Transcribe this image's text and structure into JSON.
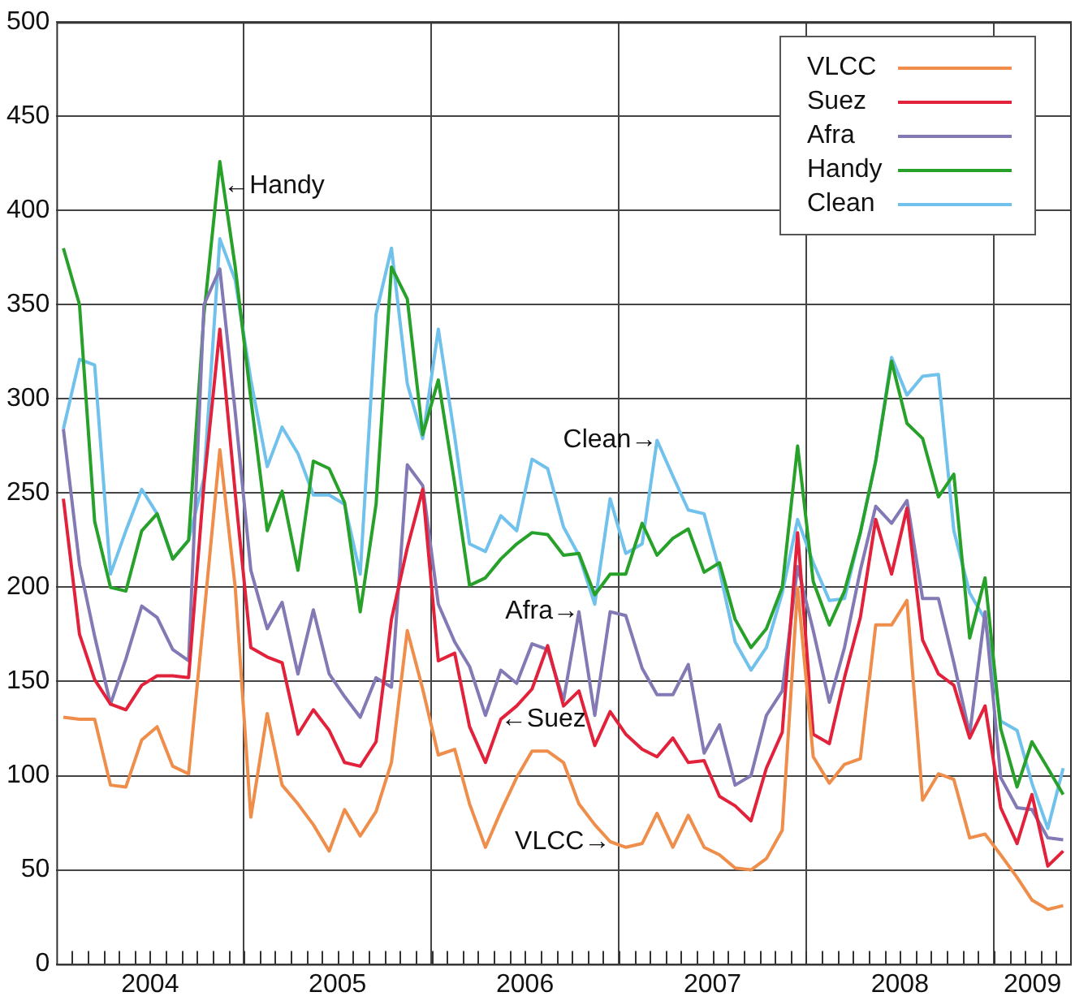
{
  "chart_data": {
    "type": "line",
    "marker": "none",
    "line_style": "solid",
    "grid": true,
    "legend": "top right",
    "x": [
      "2004-01-15",
      "2004-02-15",
      "2004-03-15",
      "2004-04-15",
      "2004-05-15",
      "2004-06-15",
      "2004-07-15",
      "2004-08-15",
      "2004-09-15",
      "2004-10-15",
      "2004-11-15",
      "2004-12-15",
      "2005-01-15",
      "2005-02-15",
      "2005-03-15",
      "2005-04-15",
      "2005-05-15",
      "2005-06-15",
      "2005-07-15",
      "2005-08-15",
      "2005-09-15",
      "2005-10-15",
      "2005-11-15",
      "2005-12-15",
      "2006-01-15",
      "2006-02-15",
      "2006-03-15",
      "2006-04-15",
      "2006-05-15",
      "2006-06-15",
      "2006-07-15",
      "2006-08-15",
      "2006-09-15",
      "2006-10-15",
      "2006-11-15",
      "2006-12-15",
      "2007-01-15",
      "2007-02-15",
      "2007-03-15",
      "2007-04-15",
      "2007-05-15",
      "2007-06-15",
      "2007-07-15",
      "2007-08-15",
      "2007-09-15",
      "2007-10-15",
      "2007-11-15",
      "2007-12-15",
      "2008-01-15",
      "2008-02-15",
      "2008-03-15",
      "2008-04-15",
      "2008-05-15",
      "2008-06-15",
      "2008-07-15",
      "2008-08-15",
      "2008-09-15",
      "2008-10-15",
      "2008-11-15",
      "2008-12-15",
      "2009-01-15",
      "2009-02-15",
      "2009-03-15",
      "2009-04-15",
      "2009-05-15"
    ],
    "series": [
      {
        "name": "VLCC",
        "color": "#ef8d4b",
        "values": [
          131,
          130,
          130,
          95,
          94,
          119,
          126,
          105,
          101,
          185,
          273,
          200,
          78,
          133,
          95,
          85,
          74,
          60,
          82,
          68,
          81,
          107,
          177,
          146,
          111,
          114,
          85,
          62,
          81,
          99,
          113,
          113,
          107,
          85,
          74,
          65,
          62,
          64,
          80,
          62,
          79,
          62,
          58,
          51,
          50,
          56,
          71,
          200,
          110,
          96,
          106,
          109,
          180,
          180,
          193,
          87,
          101,
          98,
          67,
          69,
          58,
          46,
          34,
          29,
          31
        ]
      },
      {
        "name": "Suez",
        "color": "#e2213b",
        "values": [
          247,
          175,
          151,
          138,
          135,
          148,
          153,
          153,
          152,
          255,
          337,
          250,
          168,
          163,
          160,
          122,
          135,
          124,
          107,
          105,
          118,
          183,
          221,
          252,
          161,
          165,
          126,
          107,
          130,
          137,
          146,
          169,
          137,
          145,
          116,
          134,
          122,
          114,
          110,
          120,
          107,
          108,
          89,
          84,
          76,
          104,
          123,
          229,
          122,
          117,
          152,
          184,
          236,
          207,
          242,
          172,
          154,
          148,
          120,
          137,
          83,
          64,
          90,
          52,
          60
        ]
      },
      {
        "name": "Afra",
        "color": "#8279b5",
        "values": [
          284,
          212,
          174,
          138,
          162,
          190,
          184,
          167,
          161,
          350,
          369,
          293,
          209,
          178,
          192,
          154,
          188,
          154,
          142,
          131,
          152,
          147,
          265,
          254,
          191,
          171,
          158,
          132,
          156,
          149,
          170,
          167,
          140,
          187,
          132,
          187,
          185,
          157,
          143,
          143,
          159,
          112,
          127,
          95,
          100,
          132,
          145,
          211,
          177,
          139,
          168,
          209,
          243,
          234,
          246,
          194,
          194,
          160,
          122,
          187,
          99,
          83,
          82,
          67,
          66
        ]
      },
      {
        "name": "Handy",
        "color": "#27a12a",
        "values": [
          380,
          350,
          235,
          200,
          198,
          230,
          239,
          215,
          225,
          345,
          426,
          370,
          300,
          230,
          251,
          209,
          267,
          263,
          245,
          187,
          244,
          370,
          353,
          281,
          310,
          255,
          201,
          205,
          215,
          223,
          229,
          228,
          217,
          218,
          196,
          207,
          207,
          234,
          217,
          226,
          231,
          208,
          213,
          183,
          168,
          178,
          200,
          275,
          203,
          180,
          198,
          229,
          267,
          320,
          287,
          279,
          248,
          260,
          173,
          205,
          125,
          94,
          118,
          104,
          90
        ]
      },
      {
        "name": "Clean",
        "color": "#70c1ec",
        "values": [
          284,
          321,
          318,
          207,
          230,
          252,
          239,
          215,
          225,
          258,
          385,
          363,
          310,
          264,
          285,
          271,
          249,
          249,
          244,
          207,
          345,
          380,
          308,
          279,
          337,
          280,
          223,
          219,
          238,
          230,
          268,
          263,
          232,
          217,
          191,
          247,
          218,
          223,
          278,
          259,
          241,
          239,
          209,
          171,
          156,
          168,
          197,
          236,
          213,
          193,
          194,
          229,
          267,
          322,
          302,
          312,
          313,
          230,
          197,
          183,
          129,
          124,
          96,
          72,
          104
        ]
      }
    ],
    "xlim": [
      "2004-01-01",
      "2009-06-01"
    ],
    "xticks": [
      {
        "value": "2004-07-01",
        "label": "2004"
      },
      {
        "value": "2005-07-01",
        "label": "2005"
      },
      {
        "value": "2006-07-01",
        "label": "2006"
      },
      {
        "value": "2007-07-01",
        "label": "2007"
      },
      {
        "value": "2008-07-01",
        "label": "2008"
      },
      {
        "value": "2009-03-16",
        "label": "2009"
      },
      {
        "value": "2004-02-01",
        "label": null
      },
      {
        "value": "2004-03-01",
        "label": null
      },
      {
        "value": "2004-04-01",
        "label": null
      },
      {
        "value": "2004-05-01",
        "label": null
      },
      {
        "value": "2004-06-01",
        "label": null
      },
      {
        "value": "2004-07-01",
        "label": null
      },
      {
        "value": "2004-08-01",
        "label": null
      },
      {
        "value": "2004-09-01",
        "label": null
      },
      {
        "value": "2004-10-01",
        "label": null
      },
      {
        "value": "2004-11-01",
        "label": null
      },
      {
        "value": "2004-12-01",
        "label": null
      },
      {
        "value": "2005-01-01",
        "label": null
      },
      {
        "value": "2005-02-01",
        "label": null
      },
      {
        "value": "2005-03-01",
        "label": null
      },
      {
        "value": "2005-04-01",
        "label": null
      },
      {
        "value": "2005-05-01",
        "label": null
      },
      {
        "value": "2005-06-01",
        "label": null
      },
      {
        "value": "2005-07-01",
        "label": null
      },
      {
        "value": "2005-08-01",
        "label": null
      },
      {
        "value": "2005-09-01",
        "label": null
      },
      {
        "value": "2005-10-01",
        "label": null
      },
      {
        "value": "2005-11-01",
        "label": null
      },
      {
        "value": "2005-12-01",
        "label": null
      },
      {
        "value": "2006-01-01",
        "label": null
      },
      {
        "value": "2006-02-01",
        "label": null
      },
      {
        "value": "2006-03-01",
        "label": null
      },
      {
        "value": "2006-04-01",
        "label": null
      },
      {
        "value": "2006-05-01",
        "label": null
      },
      {
        "value": "2006-06-01",
        "label": null
      },
      {
        "value": "2006-07-01",
        "label": null
      },
      {
        "value": "2006-08-01",
        "label": null
      },
      {
        "value": "2006-09-01",
        "label": null
      },
      {
        "value": "2006-10-01",
        "label": null
      },
      {
        "value": "2006-11-01",
        "label": null
      },
      {
        "value": "2006-12-01",
        "label": null
      },
      {
        "value": "2007-01-01",
        "label": null
      },
      {
        "value": "2007-02-01",
        "label": null
      },
      {
        "value": "2007-03-01",
        "label": null
      },
      {
        "value": "2007-04-01",
        "label": null
      },
      {
        "value": "2007-05-01",
        "label": null
      },
      {
        "value": "2007-06-01",
        "label": null
      },
      {
        "value": "2007-07-01",
        "label": null
      },
      {
        "value": "2007-08-01",
        "label": null
      },
      {
        "value": "2007-09-01",
        "label": null
      },
      {
        "value": "2007-10-01",
        "label": null
      },
      {
        "value": "2007-11-01",
        "label": null
      },
      {
        "value": "2007-12-01",
        "label": null
      },
      {
        "value": "2008-01-01",
        "label": null
      },
      {
        "value": "2008-02-01",
        "label": null
      },
      {
        "value": "2008-03-01",
        "label": null
      },
      {
        "value": "2008-04-01",
        "label": null
      },
      {
        "value": "2008-05-01",
        "label": null
      },
      {
        "value": "2008-06-01",
        "label": null
      },
      {
        "value": "2008-07-01",
        "label": null
      },
      {
        "value": "2008-08-01",
        "label": null
      },
      {
        "value": "2008-09-01",
        "label": null
      },
      {
        "value": "2008-10-01",
        "label": null
      },
      {
        "value": "2008-11-01",
        "label": null
      },
      {
        "value": "2008-12-01",
        "label": null
      },
      {
        "value": "2009-01-01",
        "label": null
      },
      {
        "value": "2009-02-01",
        "label": null
      },
      {
        "value": "2009-03-01",
        "label": null
      },
      {
        "value": "2009-04-01",
        "label": null
      },
      {
        "value": "2009-05-01",
        "label": null
      }
    ],
    "ylim": [
      0,
      500
    ],
    "yticks": [
      0,
      50,
      100,
      150,
      200,
      250,
      300,
      350,
      400,
      450,
      500
    ],
    "annotations": [
      {
        "text": "←Handy",
        "x": "2004-11-22",
        "y": 413
      },
      {
        "text": "Clean→",
        "x": "2007-03-15",
        "y": 278
      },
      {
        "text": "Afra→",
        "x": "2006-10-15",
        "y": 187
      },
      {
        "text": "←Suez",
        "x": "2006-05-15",
        "y": 130
      },
      {
        "text": "VLCC→",
        "x": "2006-12-15",
        "y": 65
      }
    ]
  }
}
